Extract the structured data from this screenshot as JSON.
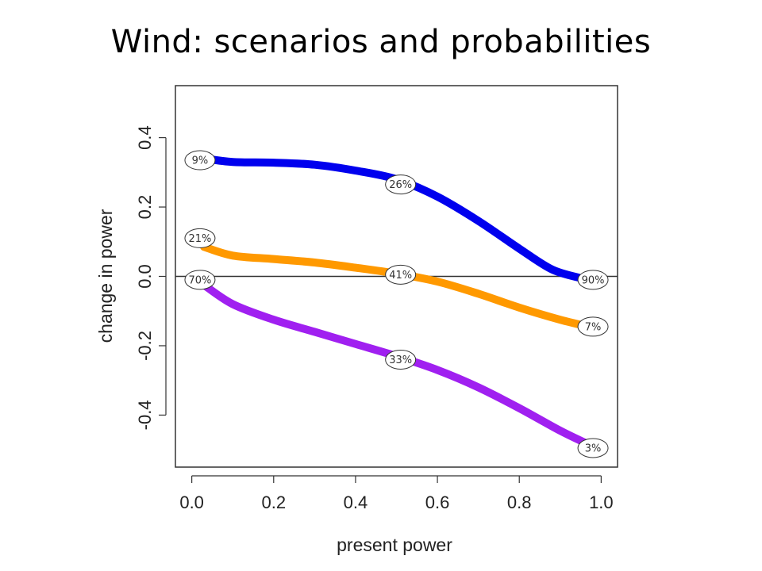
{
  "title": "Wind: scenarios and probabilities",
  "chart_data": {
    "type": "line",
    "xlabel": "present power",
    "ylabel": "change in power",
    "xlim": [
      -0.04,
      1.04
    ],
    "ylim": [
      -0.55,
      0.55
    ],
    "x_ticks": [
      "0.0",
      "0.2",
      "0.4",
      "0.6",
      "0.8",
      "1.0"
    ],
    "y_ticks": [
      "-0.4",
      "-0.2",
      "0.0",
      "0.2",
      "0.4"
    ],
    "hline": 0,
    "grid": false,
    "series": [
      {
        "color": "#0000ee",
        "points": [
          [
            0.03,
            0.34
          ],
          [
            0.1,
            0.33
          ],
          [
            0.2,
            0.328
          ],
          [
            0.3,
            0.322
          ],
          [
            0.4,
            0.305
          ],
          [
            0.5,
            0.28
          ],
          [
            0.6,
            0.23
          ],
          [
            0.7,
            0.16
          ],
          [
            0.8,
            0.08
          ],
          [
            0.88,
            0.02
          ],
          [
            0.95,
            -0.005
          ]
        ],
        "labels": [
          {
            "x": 0.02,
            "y": 0.335,
            "text": "9%"
          },
          {
            "x": 0.51,
            "y": 0.265,
            "text": "26%"
          },
          {
            "x": 0.98,
            "y": -0.01,
            "text": "90%"
          }
        ]
      },
      {
        "color": "#ff9900",
        "points": [
          [
            0.03,
            0.085
          ],
          [
            0.1,
            0.06
          ],
          [
            0.2,
            0.05
          ],
          [
            0.3,
            0.04
          ],
          [
            0.4,
            0.025
          ],
          [
            0.5,
            0.008
          ],
          [
            0.6,
            -0.015
          ],
          [
            0.7,
            -0.05
          ],
          [
            0.8,
            -0.09
          ],
          [
            0.9,
            -0.125
          ],
          [
            0.97,
            -0.145
          ]
        ],
        "labels": [
          {
            "x": 0.02,
            "y": 0.11,
            "text": "21%"
          },
          {
            "x": 0.51,
            "y": 0.005,
            "text": "41%"
          },
          {
            "x": 0.98,
            "y": -0.145,
            "text": "7%"
          }
        ]
      },
      {
        "color": "#a020f0",
        "points": [
          [
            0.03,
            -0.025
          ],
          [
            0.1,
            -0.08
          ],
          [
            0.2,
            -0.125
          ],
          [
            0.3,
            -0.16
          ],
          [
            0.4,
            -0.195
          ],
          [
            0.5,
            -0.23
          ],
          [
            0.6,
            -0.27
          ],
          [
            0.7,
            -0.32
          ],
          [
            0.8,
            -0.38
          ],
          [
            0.9,
            -0.445
          ],
          [
            0.97,
            -0.485
          ]
        ],
        "labels": [
          {
            "x": 0.02,
            "y": -0.01,
            "text": "70%"
          },
          {
            "x": 0.51,
            "y": -0.24,
            "text": "33%"
          },
          {
            "x": 0.98,
            "y": -0.495,
            "text": "3%"
          }
        ]
      }
    ]
  }
}
